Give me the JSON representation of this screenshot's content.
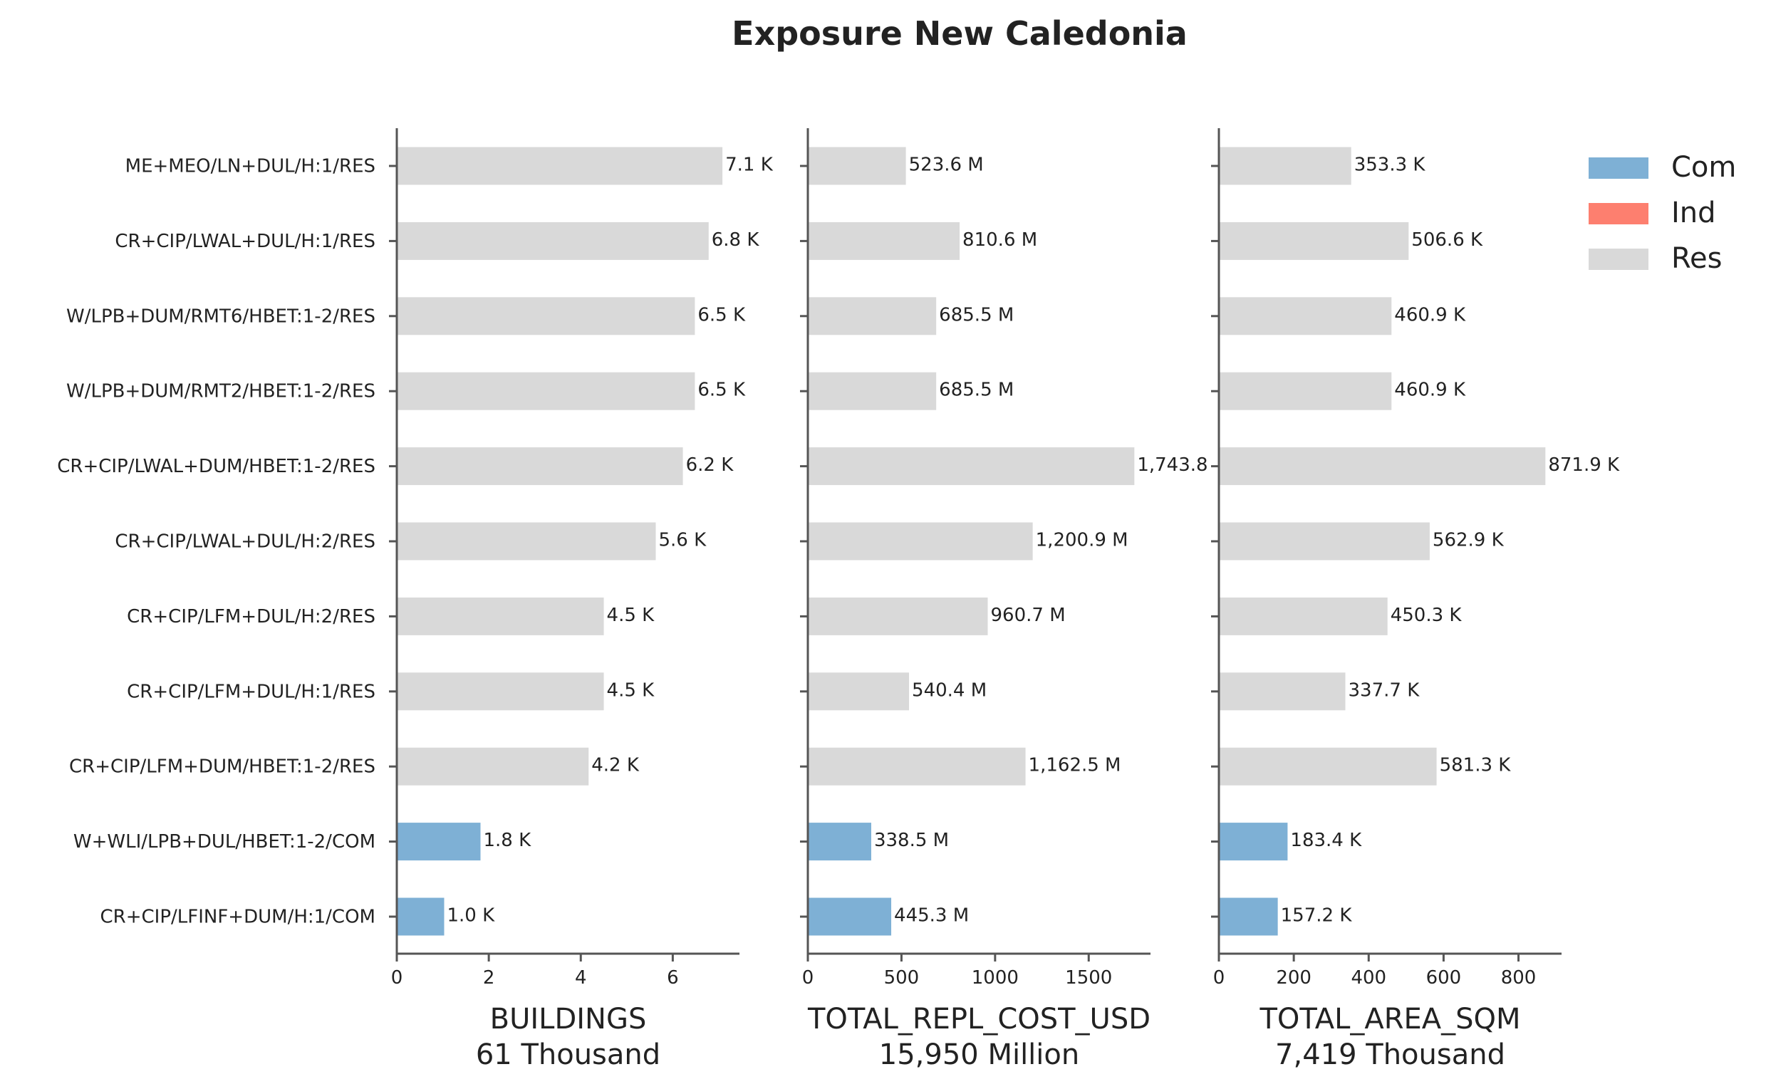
{
  "title": "Exposure New Caledonia",
  "colors": {
    "Com": "#7eb0d5",
    "Ind": "#fd7f6f",
    "Res": "#d9d9d9",
    "axis": "#555555",
    "text": "#222222"
  },
  "legend": {
    "placement": "top-right",
    "items": [
      {
        "label": "Com",
        "color": "#7eb0d5"
      },
      {
        "label": "Ind",
        "color": "#fd7f6f"
      },
      {
        "label": "Res",
        "color": "#d9d9d9"
      }
    ]
  },
  "chart_data": [
    {
      "type": "bar",
      "orientation": "horizontal",
      "xlabel": "BUILDINGS",
      "subtitle": "61 Thousand",
      "xlim": [
        0,
        7.45
      ],
      "xticks": [
        0,
        2,
        4,
        6
      ],
      "xtick_labels": [
        "0",
        "2",
        "4",
        "6"
      ],
      "categories": [
        "ME+MEO/LN+DUL/H:1/RES",
        "CR+CIP/LWAL+DUL/H:1/RES",
        "W/LPB+DUM/RMT6/HBET:1-2/RES",
        "W/LPB+DUM/RMT2/HBET:1-2/RES",
        "CR+CIP/LWAL+DUM/HBET:1-2/RES",
        "CR+CIP/LWAL+DUL/H:2/RES",
        "CR+CIP/LFM+DUL/H:2/RES",
        "CR+CIP/LFM+DUL/H:1/RES",
        "CR+CIP/LFM+DUM/HBET:1-2/RES",
        "W+WLI/LPB+DUL/HBET:1-2/COM",
        "CR+CIP/LFINF+DUM/H:1/COM"
      ],
      "occupancy": [
        "Res",
        "Res",
        "Res",
        "Res",
        "Res",
        "Res",
        "Res",
        "Res",
        "Res",
        "Com",
        "Com"
      ],
      "values": [
        7.08,
        6.78,
        6.48,
        6.48,
        6.22,
        5.63,
        4.5,
        4.5,
        4.17,
        1.82,
        1.03
      ],
      "value_labels": [
        "7.1 K",
        "6.8 K",
        "6.5 K",
        "6.5 K",
        "6.2 K",
        "5.6 K",
        "4.5 K",
        "4.5 K",
        "4.2 K",
        "1.8 K",
        "1.0 K"
      ]
    },
    {
      "type": "bar",
      "orientation": "horizontal",
      "xlabel": "TOTAL_REPL_COST_USD",
      "subtitle": "15,950 Million",
      "xlim": [
        0,
        1830
      ],
      "xticks": [
        0,
        500,
        1000,
        1500
      ],
      "xtick_labels": [
        "0",
        "500",
        "1000",
        "1500"
      ],
      "occupancy": [
        "Res",
        "Res",
        "Res",
        "Res",
        "Res",
        "Res",
        "Res",
        "Res",
        "Res",
        "Com",
        "Com"
      ],
      "values": [
        523.6,
        810.6,
        685.5,
        685.5,
        1743.8,
        1200.9,
        960.7,
        540.4,
        1162.5,
        338.5,
        445.3
      ],
      "value_labels": [
        "523.6 M",
        "810.6 M",
        "685.5 M",
        "685.5 M",
        "1,743.8",
        "1,200.9 M",
        "960.7 M",
        "540.4 M",
        "1,162.5 M",
        "338.5 M",
        "445.3 M"
      ]
    },
    {
      "type": "bar",
      "orientation": "horizontal",
      "xlabel": "TOTAL_AREA_SQM",
      "subtitle": "7,419 Thousand",
      "xlim": [
        0,
        915
      ],
      "xticks": [
        0,
        200,
        400,
        600,
        800
      ],
      "xtick_labels": [
        "0",
        "200",
        "400",
        "600",
        "800"
      ],
      "occupancy": [
        "Res",
        "Res",
        "Res",
        "Res",
        "Res",
        "Res",
        "Res",
        "Res",
        "Res",
        "Com",
        "Com"
      ],
      "values": [
        353.3,
        506.6,
        460.9,
        460.9,
        871.9,
        562.9,
        450.3,
        337.7,
        581.3,
        183.4,
        157.2
      ],
      "value_labels": [
        "353.3 K",
        "506.6 K",
        "460.9 K",
        "460.9 K",
        "871.9 K",
        "562.9 K",
        "450.3 K",
        "337.7 K",
        "581.3 K",
        "183.4 K",
        "157.2 K"
      ]
    }
  ]
}
